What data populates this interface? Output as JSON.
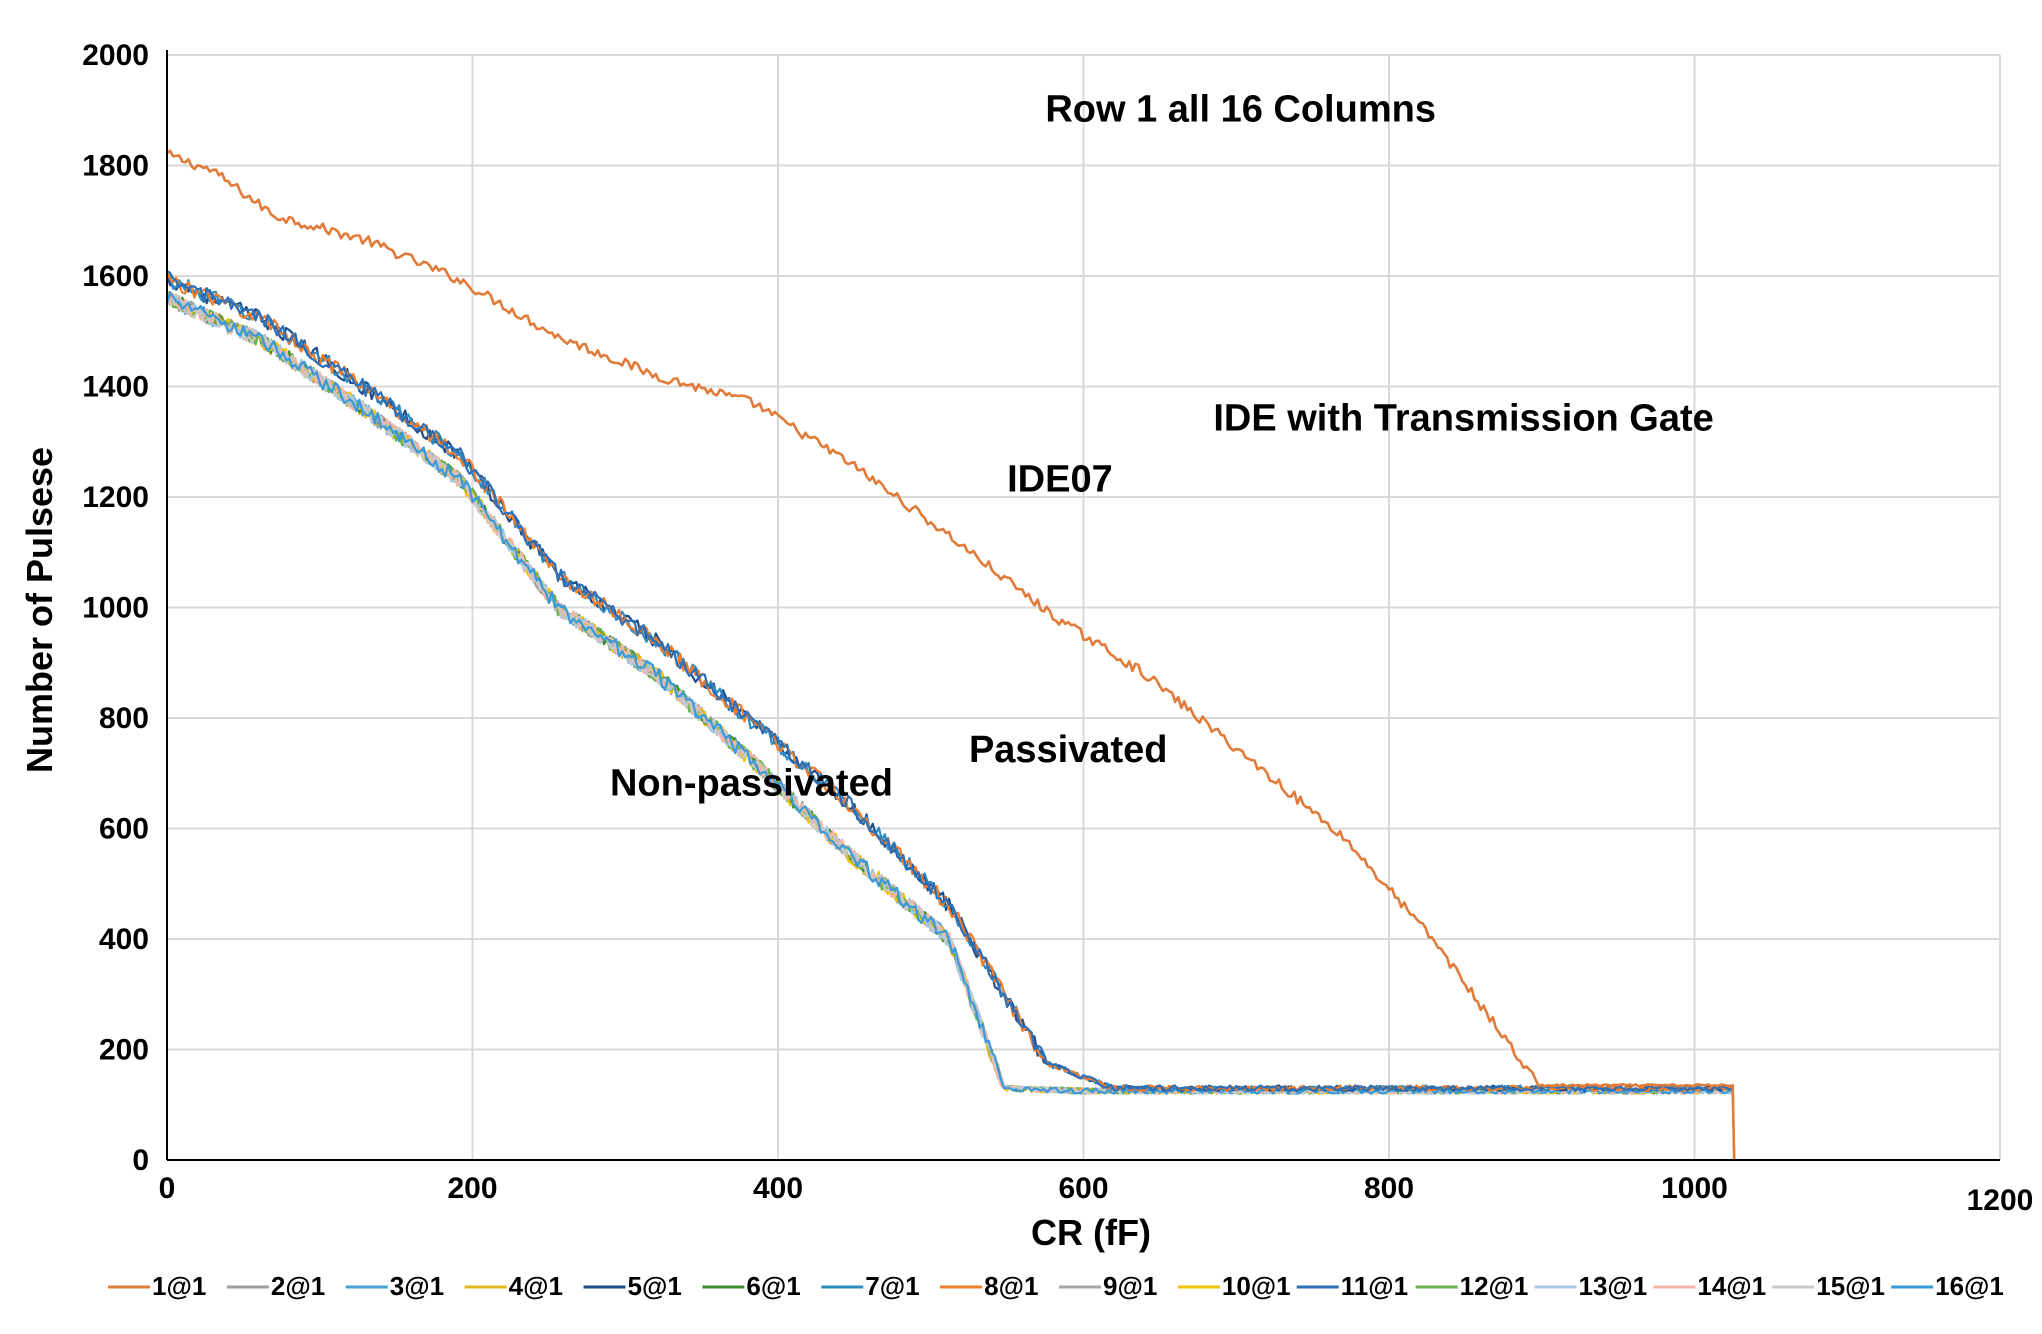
{
  "chart_data": {
    "type": "line",
    "title": "",
    "xlabel": "CR (fF)",
    "ylabel": "Number of Pulsese",
    "xlim": [
      0,
      1200
    ],
    "ylim": [
      0,
      2000
    ],
    "x_ticks": [
      "0",
      "200",
      "400",
      "600",
      "800",
      "1000",
      "1200"
    ],
    "y_ticks": [
      "0",
      "200",
      "400",
      "600",
      "800",
      "1000",
      "1200",
      "1400",
      "1600",
      "1800",
      "2000"
    ],
    "grid": true,
    "legend_position": "bottom",
    "annotations": [
      {
        "text": "Row 1 all 16 Columns",
        "x": 575,
        "y": 1880
      },
      {
        "text": "IDE with Transmission Gate",
        "x": 685,
        "y": 1320
      },
      {
        "text": "IDE07",
        "x": 550,
        "y": 1210
      },
      {
        "text": "Passivated",
        "x": 525,
        "y": 720
      },
      {
        "text": "Non-passivated",
        "x": 290,
        "y": 660
      }
    ],
    "series": [
      {
        "name": "1@1",
        "color": "#e07b39",
        "group": "ide07",
        "x": [
          0,
          30,
          70,
          130,
          190,
          256,
          320,
          384,
          448,
          512,
          580,
          640,
          700,
          770,
          830,
          898,
          1025,
          1026
        ],
        "y": [
          1820,
          1790,
          1710,
          1665,
          1595,
          1490,
          1420,
          1370,
          1260,
          1130,
          985,
          880,
          745,
          585,
          395,
          135,
          135,
          0
        ]
      },
      {
        "name": "2@1",
        "color": "#9e9e9e",
        "group": "non-passivated",
        "x": [
          0,
          64,
          128,
          192,
          256,
          320,
          384,
          448,
          512,
          548,
          600,
          700,
          800,
          900,
          1025,
          1026
        ],
        "y": [
          1560,
          1480,
          1360,
          1230,
          1000,
          880,
          720,
          550,
          400,
          130,
          125,
          125,
          125,
          125,
          125,
          0
        ]
      },
      {
        "name": "3@1",
        "color": "#4aa0d8",
        "group": "non-passivated",
        "x": [
          0,
          64,
          128,
          192,
          256,
          320,
          384,
          448,
          512,
          548,
          600,
          700,
          800,
          900,
          1025
        ],
        "y": [
          1560,
          1480,
          1360,
          1230,
          1000,
          880,
          720,
          550,
          400,
          130,
          125,
          125,
          125,
          125,
          125
        ]
      },
      {
        "name": "4@1",
        "color": "#e6b422",
        "group": "non-passivated",
        "x": [
          0,
          64,
          128,
          192,
          256,
          320,
          384,
          448,
          512,
          548,
          600,
          700,
          800,
          900,
          1025
        ],
        "y": [
          1560,
          1480,
          1360,
          1230,
          1000,
          880,
          720,
          550,
          400,
          130,
          125,
          125,
          125,
          125,
          125
        ]
      },
      {
        "name": "5@1",
        "color": "#1f4e8c",
        "group": "passivated",
        "x": [
          0,
          64,
          128,
          192,
          256,
          320,
          384,
          448,
          512,
          576,
          620,
          700,
          800,
          900,
          1025
        ],
        "y": [
          1595,
          1520,
          1400,
          1275,
          1060,
          940,
          790,
          640,
          460,
          175,
          130,
          130,
          130,
          130,
          130
        ]
      },
      {
        "name": "6@1",
        "color": "#3c8d2f",
        "group": "non-passivated",
        "x": [
          0,
          64,
          128,
          192,
          256,
          320,
          384,
          448,
          512,
          548,
          600,
          700,
          800,
          900,
          1025
        ],
        "y": [
          1560,
          1480,
          1360,
          1230,
          1000,
          880,
          720,
          550,
          400,
          130,
          125,
          125,
          125,
          125,
          125
        ]
      },
      {
        "name": "7@1",
        "color": "#2e8bc0",
        "group": "passivated",
        "x": [
          0,
          64,
          128,
          192,
          256,
          320,
          384,
          448,
          512,
          576,
          620,
          700,
          800,
          900,
          1025
        ],
        "y": [
          1595,
          1520,
          1400,
          1275,
          1060,
          940,
          790,
          640,
          460,
          175,
          130,
          130,
          130,
          130,
          130
        ]
      },
      {
        "name": "8@1",
        "color": "#ef7d2d",
        "group": "passivated",
        "x": [
          0,
          64,
          128,
          192,
          256,
          320,
          384,
          448,
          512,
          576,
          620,
          700,
          800,
          900,
          1025
        ],
        "y": [
          1595,
          1520,
          1400,
          1275,
          1060,
          940,
          790,
          640,
          460,
          175,
          130,
          130,
          130,
          130,
          130
        ]
      },
      {
        "name": "9@1",
        "color": "#a6a6a6",
        "group": "non-passivated",
        "x": [
          0,
          64,
          128,
          192,
          256,
          320,
          384,
          448,
          512,
          548,
          600,
          700,
          800,
          900,
          1025
        ],
        "y": [
          1560,
          1480,
          1360,
          1230,
          1000,
          880,
          720,
          550,
          400,
          130,
          125,
          125,
          125,
          125,
          125
        ]
      },
      {
        "name": "10@1",
        "color": "#f2c400",
        "group": "non-passivated",
        "x": [
          0,
          64,
          128,
          192,
          256,
          320,
          384,
          448,
          512,
          548,
          600,
          700,
          800,
          900,
          1025
        ],
        "y": [
          1560,
          1480,
          1360,
          1230,
          1000,
          880,
          720,
          550,
          400,
          130,
          125,
          125,
          125,
          125,
          125
        ]
      },
      {
        "name": "11@1",
        "color": "#2f6fb5",
        "group": "passivated",
        "x": [
          0,
          64,
          128,
          192,
          256,
          320,
          384,
          448,
          512,
          576,
          620,
          700,
          800,
          900,
          1025
        ],
        "y": [
          1595,
          1520,
          1400,
          1275,
          1060,
          940,
          790,
          640,
          460,
          175,
          130,
          130,
          130,
          130,
          130
        ]
      },
      {
        "name": "12@1",
        "color": "#6bb04a",
        "group": "non-passivated",
        "x": [
          0,
          64,
          128,
          192,
          256,
          320,
          384,
          448,
          512,
          548,
          600,
          700,
          800,
          900,
          1025
        ],
        "y": [
          1560,
          1480,
          1360,
          1230,
          1000,
          880,
          720,
          550,
          400,
          130,
          125,
          125,
          125,
          125,
          125
        ]
      },
      {
        "name": "13@1",
        "color": "#a9c8e8",
        "group": "non-passivated",
        "x": [
          0,
          64,
          128,
          192,
          256,
          320,
          384,
          448,
          512,
          548,
          600,
          700,
          800,
          900,
          1025
        ],
        "y": [
          1560,
          1480,
          1360,
          1230,
          1000,
          880,
          720,
          550,
          400,
          130,
          125,
          125,
          125,
          125,
          125
        ]
      },
      {
        "name": "14@1",
        "color": "#f4b6a6",
        "group": "non-passivated",
        "x": [
          0,
          64,
          128,
          192,
          256,
          320,
          384,
          448,
          512,
          548,
          600,
          700,
          800,
          900,
          1025
        ],
        "y": [
          1560,
          1480,
          1360,
          1230,
          1000,
          880,
          720,
          550,
          400,
          130,
          125,
          125,
          125,
          125,
          125
        ]
      },
      {
        "name": "15@1",
        "color": "#c8c8c8",
        "group": "non-passivated",
        "x": [
          0,
          64,
          128,
          192,
          256,
          320,
          384,
          448,
          512,
          548,
          600,
          700,
          800,
          900,
          1025
        ],
        "y": [
          1560,
          1480,
          1360,
          1230,
          1000,
          880,
          720,
          550,
          400,
          130,
          125,
          125,
          125,
          125,
          125
        ]
      },
      {
        "name": "16@1",
        "color": "#3a9ad9",
        "group": "non-passivated",
        "x": [
          0,
          64,
          128,
          192,
          256,
          320,
          384,
          448,
          512,
          548,
          600,
          700,
          800,
          900,
          1025
        ],
        "y": [
          1560,
          1480,
          1360,
          1230,
          1000,
          880,
          720,
          550,
          400,
          130,
          125,
          125,
          125,
          125,
          125
        ]
      }
    ]
  }
}
